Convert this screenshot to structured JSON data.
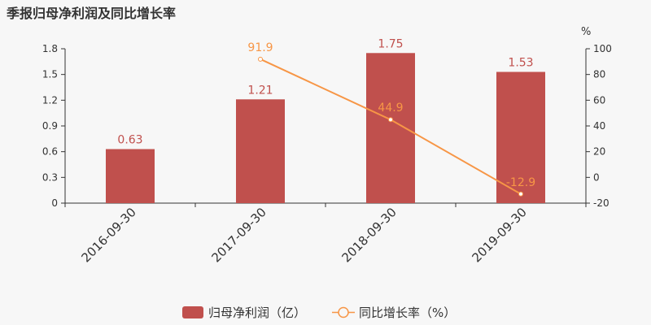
{
  "chart_data": {
    "type": "bar",
    "title": "季报归母净利润及同比增长率",
    "categories": [
      "2016-09-30",
      "2017-09-30",
      "2018-09-30",
      "2019-09-30"
    ],
    "series": [
      {
        "name": "归母净利润（亿）",
        "type": "bar",
        "axis": "left",
        "values": [
          0.63,
          1.21,
          1.75,
          1.53
        ],
        "labels": [
          "0.63",
          "1.21",
          "1.75",
          "1.53"
        ]
      },
      {
        "name": "同比增长率（%）",
        "type": "line",
        "axis": "right",
        "values": [
          null,
          91.9,
          44.9,
          -12.9
        ],
        "labels": [
          "",
          "91.9",
          "44.9",
          "-12.9"
        ]
      }
    ],
    "y_left": {
      "min": 0,
      "max": 1.8,
      "ticks": [
        "0",
        "0.3",
        "0.6",
        "0.9",
        "1.2",
        "1.5",
        "1.8"
      ]
    },
    "y_right": {
      "min": -20,
      "max": 100,
      "unit": "%",
      "ticks": [
        "-20",
        "0",
        "20",
        "40",
        "60",
        "80",
        "100"
      ]
    },
    "grid": false,
    "legend_position": "bottom-center",
    "colors": {
      "bar": "#c0504d",
      "line": "#f79646"
    }
  }
}
